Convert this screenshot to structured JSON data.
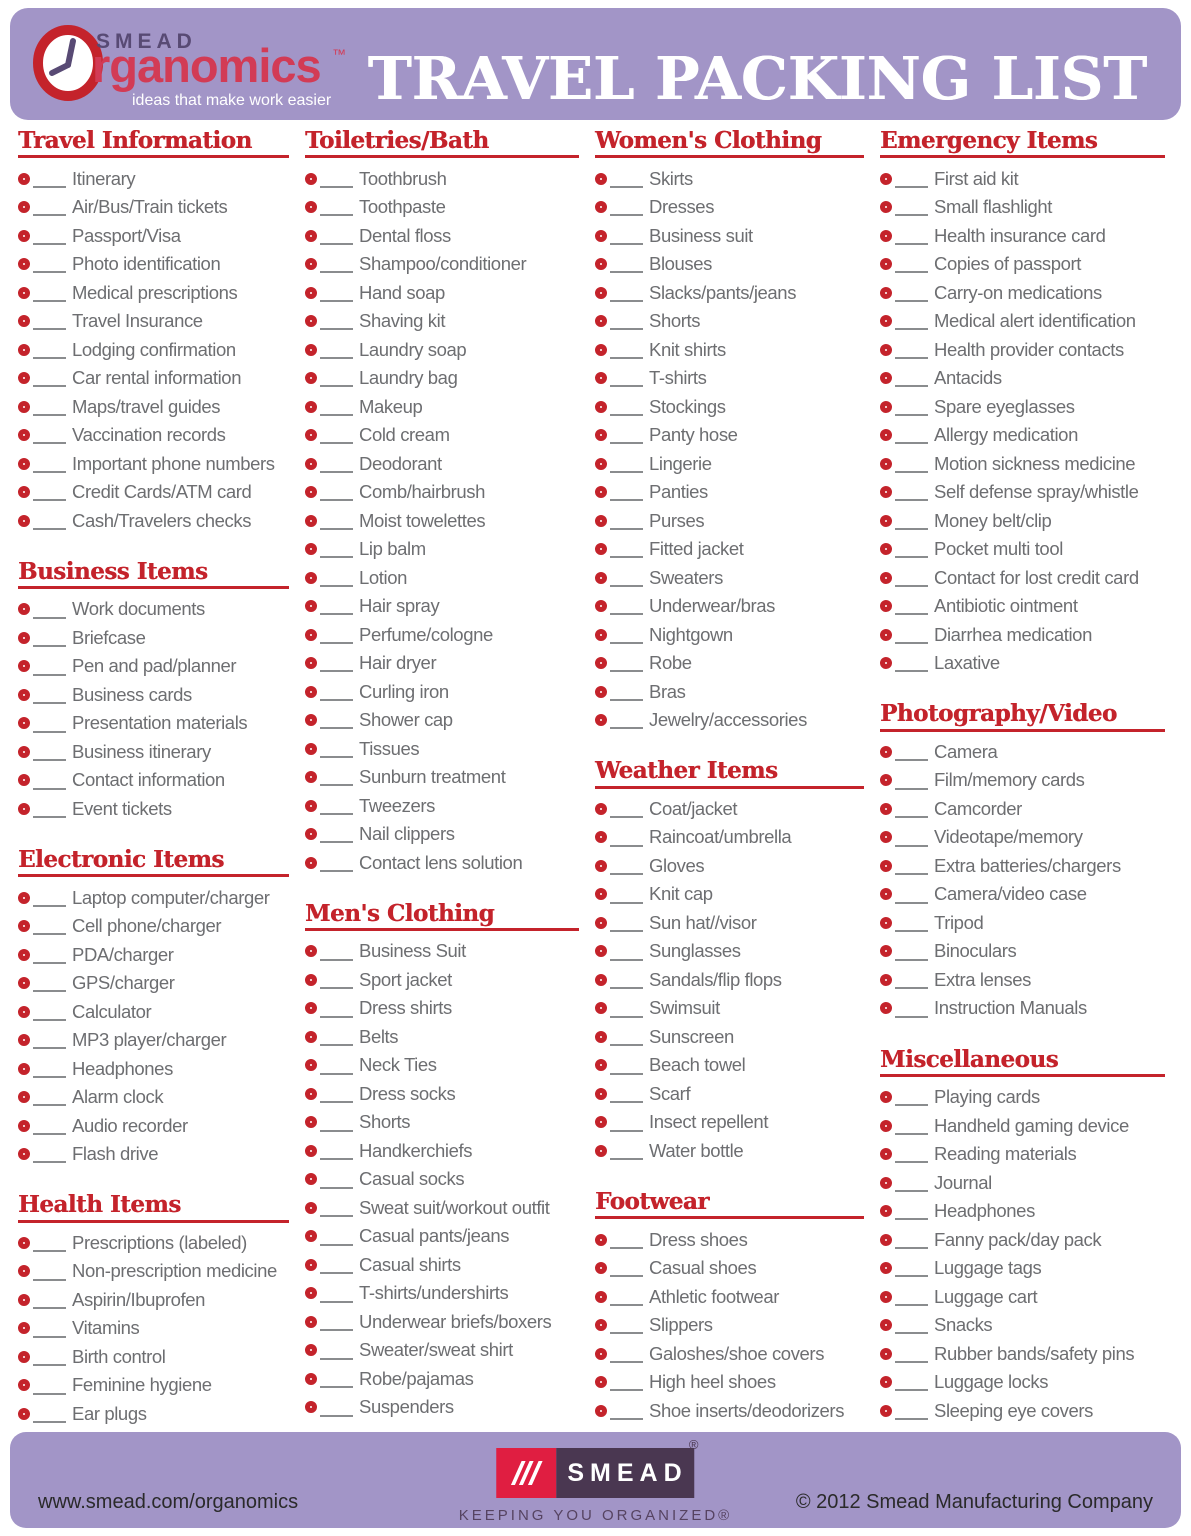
{
  "header": {
    "logo": {
      "smead": "SMEAD",
      "organomics_rest": "rganomics",
      "tm": "™",
      "tagline": "ideas that make work easier"
    },
    "title": "TRAVEL PACKING LIST"
  },
  "columns": [
    {
      "sections": [
        {
          "title": "Travel Information",
          "items": [
            "Itinerary",
            "Air/Bus/Train tickets",
            "Passport/Visa",
            "Photo identification",
            "Medical prescriptions",
            "Travel Insurance",
            "Lodging confirmation",
            "Car rental information",
            "Maps/travel guides",
            "Vaccination records",
            "Important phone numbers",
            "Credit Cards/ATM card",
            "Cash/Travelers checks"
          ]
        },
        {
          "title": "Business Items",
          "items": [
            "Work documents",
            "Briefcase",
            "Pen and pad/planner",
            "Business cards",
            "Presentation materials",
            "Business itinerary",
            "Contact information",
            "Event tickets"
          ]
        },
        {
          "title": "Electronic Items",
          "items": [
            "Laptop computer/charger",
            "Cell phone/charger",
            "PDA/charger",
            "GPS/charger",
            "Calculator",
            "MP3 player/charger",
            "Headphones",
            "Alarm clock",
            "Audio recorder",
            "Flash drive"
          ]
        },
        {
          "title": "Health Items",
          "items": [
            "Prescriptions (labeled)",
            "Non-prescription medicine",
            "Aspirin/Ibuprofen",
            "Vitamins",
            "Birth control",
            "Feminine hygiene",
            "Ear plugs"
          ]
        }
      ]
    },
    {
      "sections": [
        {
          "title": "Toiletries/Bath",
          "items": [
            "Toothbrush",
            "Toothpaste",
            "Dental floss",
            "Shampoo/conditioner",
            "Hand soap",
            "Shaving kit",
            "Laundry soap",
            "Laundry bag",
            "Makeup",
            "Cold cream",
            "Deodorant",
            "Comb/hairbrush",
            "Moist towelettes",
            "Lip balm",
            "Lotion",
            "Hair spray",
            "Perfume/cologne",
            "Hair dryer",
            "Curling iron",
            "Shower cap",
            "Tissues",
            "Sunburn treatment",
            "Tweezers",
            "Nail clippers",
            "Contact lens solution"
          ]
        },
        {
          "title": "Men's Clothing",
          "items": [
            "Business Suit",
            "Sport jacket",
            "Dress shirts",
            "Belts",
            "Neck Ties",
            "Dress socks",
            "Shorts",
            "Handkerchiefs",
            "Casual socks",
            "Sweat suit/workout outfit",
            "Casual pants/jeans",
            "Casual shirts",
            "T-shirts/undershirts",
            "Underwear briefs/boxers",
            "Sweater/sweat shirt",
            "Robe/pajamas",
            "Suspenders"
          ]
        }
      ]
    },
    {
      "sections": [
        {
          "title": "Women's Clothing",
          "items": [
            "Skirts",
            "Dresses",
            "Business suit",
            "Blouses",
            "Slacks/pants/jeans",
            "Shorts",
            "Knit shirts",
            "T-shirts",
            "Stockings",
            "Panty hose",
            "Lingerie",
            "Panties",
            "Purses",
            "Fitted jacket",
            "Sweaters",
            "Underwear/bras",
            "Nightgown",
            "Robe",
            "Bras",
            "Jewelry/accessories"
          ]
        },
        {
          "title": "Weather Items",
          "items": [
            "Coat/jacket",
            "Raincoat/umbrella",
            "Gloves",
            "Knit cap",
            "Sun hat//visor",
            "Sunglasses",
            "Sandals/flip flops",
            "Swimsuit",
            "Sunscreen",
            "Beach towel",
            "Scarf",
            "Insect repellent",
            "Water bottle"
          ]
        },
        {
          "title": "Footwear",
          "items": [
            "Dress shoes",
            "Casual shoes",
            "Athletic footwear",
            "Slippers",
            "Galoshes/shoe covers",
            "High heel shoes",
            "Shoe inserts/deodorizers"
          ]
        }
      ]
    },
    {
      "sections": [
        {
          "title": "Emergency Items",
          "items": [
            "First aid kit",
            "Small flashlight",
            "Health insurance card",
            "Copies of passport",
            "Carry-on medications",
            "Medical alert identification",
            "Health provider contacts",
            "Antacids",
            "Spare eyeglasses",
            "Allergy medication",
            "Motion sickness medicine",
            "Self defense spray/whistle",
            "Money belt/clip",
            "Pocket multi tool",
            "Contact for lost credit card",
            "Antibiotic ointment",
            "Diarrhea medication",
            "Laxative"
          ]
        },
        {
          "title": "Photography/Video",
          "items": [
            "Camera",
            "Film/memory cards",
            "Camcorder",
            "Videotape/memory",
            "Extra batteries/chargers",
            "Camera/video case",
            "Tripod",
            "Binoculars",
            "Extra lenses",
            "Instruction Manuals"
          ]
        },
        {
          "title": "Miscellaneous",
          "items": [
            "Playing cards",
            "Handheld gaming device",
            "Reading materials",
            "Journal",
            "Headphones",
            "Fanny pack/day pack",
            "Luggage tags",
            "Luggage cart",
            "Snacks",
            "Rubber bands/safety pins",
            "Luggage locks",
            "Sleeping eye covers"
          ]
        }
      ]
    }
  ],
  "footer": {
    "website": "www.smead.com/organomics",
    "logo_text": "SMEAD",
    "logo_registered": "®",
    "slogan": "KEEPING YOU ORGANIZED®",
    "copyright": "© 2012 Smead Manufacturing Company"
  },
  "colors": {
    "purple": "#a295c7",
    "red": "#c4232b",
    "logo-pink": "#d23b55",
    "logo-purple": "#584a74",
    "item-gray": "#6d6e71",
    "line-gray": "#8a8c8e",
    "flogo-red": "#e01e41",
    "flogo-purple": "#4a3751"
  }
}
